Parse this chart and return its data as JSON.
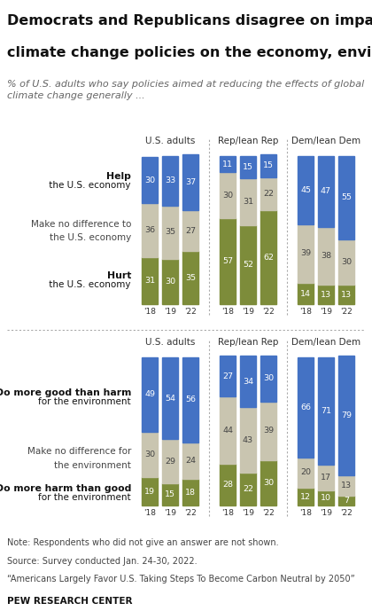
{
  "title_line1": "Democrats and Republicans disagree on impact of",
  "title_line2": "climate change policies on the economy, environment",
  "subtitle": "% of U.S. adults who say policies aimed at reducing the effects of global\nclimate change generally ...",
  "group_headers": [
    "U.S. adults",
    "Rep/lean Rep",
    "Dem/lean Dem"
  ],
  "years": [
    "'18",
    "'19",
    "'22"
  ],
  "economy": {
    "us_adults": {
      "help": [
        30,
        33,
        37
      ],
      "no_diff": [
        36,
        35,
        27
      ],
      "hurt": [
        31,
        30,
        35
      ]
    },
    "rep": {
      "help": [
        11,
        15,
        15
      ],
      "no_diff": [
        30,
        31,
        22
      ],
      "hurt": [
        57,
        52,
        62
      ]
    },
    "dem": {
      "help": [
        45,
        47,
        55
      ],
      "no_diff": [
        39,
        38,
        30
      ],
      "hurt": [
        14,
        13,
        13
      ]
    }
  },
  "environment": {
    "us_adults": {
      "good": [
        49,
        54,
        56
      ],
      "no_diff": [
        30,
        29,
        24
      ],
      "harm": [
        19,
        15,
        18
      ]
    },
    "rep": {
      "good": [
        27,
        34,
        30
      ],
      "no_diff": [
        44,
        43,
        39
      ],
      "harm": [
        28,
        22,
        30
      ]
    },
    "dem": {
      "good": [
        66,
        71,
        79
      ],
      "no_diff": [
        20,
        17,
        13
      ],
      "harm": [
        12,
        10,
        7
      ]
    }
  },
  "color_blue": "#4472C4",
  "color_tan": "#C9C5B0",
  "color_green": "#7D8C3A",
  "bg_color": "#FFFFFF",
  "footer": [
    "Note: Respondents who did not give an answer are not shown.",
    "Source: Survey conducted Jan. 24-30, 2022.",
    "“Americans Largely Favor U.S. Taking Steps To Become Carbon Neutral by 2050”",
    "PEW RESEARCH CENTER"
  ]
}
